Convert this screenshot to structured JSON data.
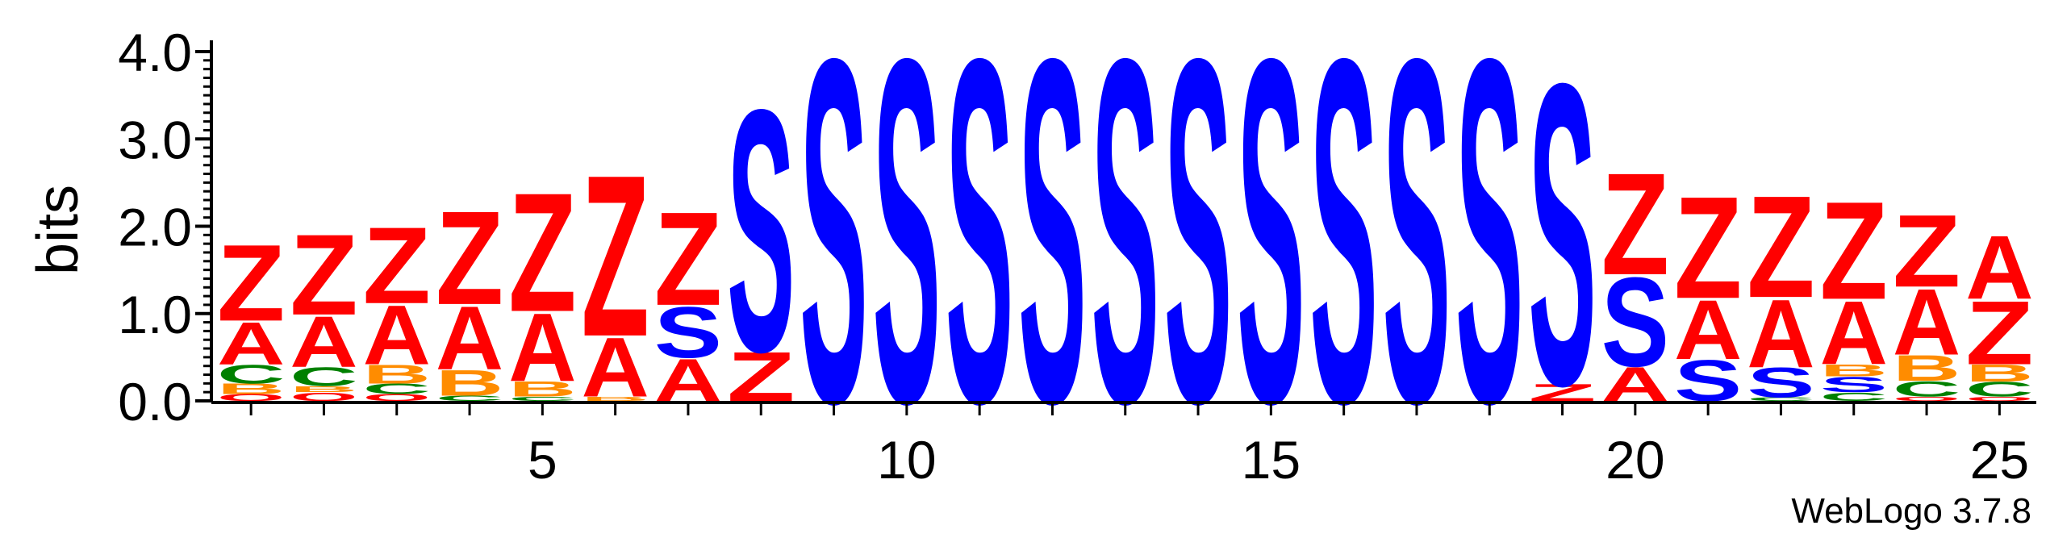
{
  "chart_data": {
    "type": "sequence-logo",
    "title": "",
    "xlabel": "",
    "ylabel": "bits",
    "ylim": [
      0,
      4.0
    ],
    "yticks": [
      "0.0",
      "1.0",
      "2.0",
      "3.0",
      "4.0"
    ],
    "xticks": [
      "5",
      "10",
      "15",
      "20",
      "25"
    ],
    "footer": "WebLogo 3.7.8",
    "colors": {
      "Z": "#ff0000",
      "A": "#ff0000",
      "S": "#0000ff",
      "C": "#008000",
      "B": "#ff8c00",
      "Q": "#ff0000"
    },
    "positions": [
      {
        "pos": 1,
        "stack": [
          [
            "Q",
            0.08
          ],
          [
            "B",
            0.12
          ],
          [
            "C",
            0.22
          ],
          [
            "A",
            0.5
          ],
          [
            "Z",
            0.9
          ]
        ]
      },
      {
        "pos": 2,
        "stack": [
          [
            "Q",
            0.1
          ],
          [
            "B",
            0.07
          ],
          [
            "C",
            0.22
          ],
          [
            "A",
            0.6
          ],
          [
            "Z",
            0.95
          ]
        ]
      },
      {
        "pos": 3,
        "stack": [
          [
            "Q",
            0.08
          ],
          [
            "C",
            0.12
          ],
          [
            "B",
            0.22
          ],
          [
            "A",
            0.7
          ],
          [
            "Z",
            0.9
          ]
        ]
      },
      {
        "pos": 4,
        "stack": [
          [
            "C",
            0.06
          ],
          [
            "B",
            0.3
          ],
          [
            "A",
            0.75
          ],
          [
            "Z",
            1.1
          ]
        ]
      },
      {
        "pos": 5,
        "stack": [
          [
            "C",
            0.05
          ],
          [
            "B",
            0.18
          ],
          [
            "A",
            0.8
          ],
          [
            "Z",
            1.4
          ]
        ]
      },
      {
        "pos": 6,
        "stack": [
          [
            "B",
            0.05
          ],
          [
            "A",
            0.7
          ],
          [
            "Z",
            1.9
          ]
        ]
      },
      {
        "pos": 7,
        "stack": [
          [
            "A",
            0.5
          ],
          [
            "S",
            0.6
          ],
          [
            "Z",
            1.1
          ]
        ]
      },
      {
        "pos": 8,
        "stack": [
          [
            "Z",
            0.58
          ],
          [
            "S",
            2.85
          ]
        ]
      },
      {
        "pos": 9,
        "stack": [
          [
            "S",
            4.05
          ]
        ]
      },
      {
        "pos": 10,
        "stack": [
          [
            "S",
            4.05
          ]
        ]
      },
      {
        "pos": 11,
        "stack": [
          [
            "S",
            4.05
          ]
        ]
      },
      {
        "pos": 12,
        "stack": [
          [
            "S",
            4.05
          ]
        ]
      },
      {
        "pos": 13,
        "stack": [
          [
            "S",
            4.05
          ]
        ]
      },
      {
        "pos": 14,
        "stack": [
          [
            "S",
            4.05
          ]
        ]
      },
      {
        "pos": 15,
        "stack": [
          [
            "S",
            4.05
          ]
        ]
      },
      {
        "pos": 16,
        "stack": [
          [
            "S",
            4.05
          ]
        ]
      },
      {
        "pos": 17,
        "stack": [
          [
            "S",
            4.05
          ]
        ]
      },
      {
        "pos": 18,
        "stack": [
          [
            "S",
            4.05
          ]
        ]
      },
      {
        "pos": 19,
        "stack": [
          [
            "Z",
            0.2
          ],
          [
            "S",
            3.55
          ]
        ]
      },
      {
        "pos": 20,
        "stack": [
          [
            "A",
            0.4
          ],
          [
            "S",
            1.05
          ],
          [
            "Z",
            1.2
          ]
        ]
      },
      {
        "pos": 21,
        "stack": [
          [
            "S",
            0.48
          ],
          [
            "A",
            0.7
          ],
          [
            "Z",
            1.2
          ]
        ]
      },
      {
        "pos": 22,
        "stack": [
          [
            "C",
            0.04
          ],
          [
            "S",
            0.35
          ],
          [
            "A",
            0.8
          ],
          [
            "Z",
            1.2
          ]
        ]
      },
      {
        "pos": 23,
        "stack": [
          [
            "C",
            0.1
          ],
          [
            "S",
            0.18
          ],
          [
            "B",
            0.14
          ],
          [
            "A",
            0.75
          ],
          [
            "Z",
            1.15
          ]
        ]
      },
      {
        "pos": 24,
        "stack": [
          [
            "Q",
            0.05
          ],
          [
            "C",
            0.18
          ],
          [
            "B",
            0.3
          ],
          [
            "A",
            0.78
          ],
          [
            "Z",
            0.85
          ]
        ]
      },
      {
        "pos": 25,
        "stack": [
          [
            "Q",
            0.05
          ],
          [
            "C",
            0.17
          ],
          [
            "B",
            0.2
          ],
          [
            "Z",
            0.75
          ],
          [
            "A",
            0.75
          ]
        ]
      }
    ]
  }
}
